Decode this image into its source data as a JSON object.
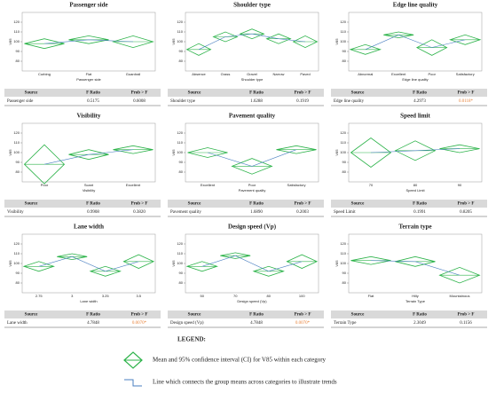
{
  "chart_data": [
    {
      "type": "means-diamond",
      "title": "Passenger side",
      "x_label": "Passenger side",
      "y_label": "V85",
      "categories": [
        "Curbing",
        "Flat",
        "Guardrail"
      ],
      "values": [
        98,
        102,
        100
      ],
      "ci": [
        5,
        4,
        6
      ],
      "ylim": [
        70,
        130
      ],
      "yticks": [
        80,
        90,
        100,
        110,
        120
      ],
      "table": {
        "columns": [
          "Source",
          "F Ratio",
          "Prob > F"
        ],
        "row": [
          "Passenger side",
          "0.5175",
          "0.6008"
        ],
        "significant": false
      }
    },
    {
      "type": "means-diamond",
      "title": "Shoulder type",
      "x_label": "Shoulder type",
      "y_label": "V85",
      "categories": [
        "Absence",
        "Grass",
        "Gravel",
        "Narrow",
        "Paved"
      ],
      "values": [
        92,
        105,
        108,
        103,
        100
      ],
      "ci": [
        6,
        5,
        5,
        5,
        6
      ],
      "ylim": [
        70,
        130
      ],
      "yticks": [
        80,
        90,
        100,
        110,
        120
      ],
      "table": {
        "columns": [
          "Source",
          "F Ratio",
          "Prob > F"
        ],
        "row": [
          "Shoulder type",
          "1.6288",
          "0.1919"
        ],
        "significant": false
      }
    },
    {
      "type": "means-diamond",
      "title": "Edge line quality",
      "x_label": "Edge line quality",
      "y_label": "V85",
      "categories": [
        "Abnormal",
        "Excellent",
        "Poor",
        "Satisfactory"
      ],
      "values": [
        92,
        107,
        94,
        102
      ],
      "ci": [
        5,
        3,
        8,
        5
      ],
      "ylim": [
        70,
        130
      ],
      "yticks": [
        80,
        90,
        100,
        110,
        120
      ],
      "table": {
        "columns": [
          "Source",
          "F Ratio",
          "Prob > F"
        ],
        "row": [
          "Edge line quality",
          "4.2973",
          "0.0118*"
        ],
        "significant": true
      }
    },
    {
      "type": "means-diamond",
      "title": "Visibility",
      "x_label": "Visibility",
      "y_label": "V85",
      "categories": [
        "Poor",
        "Scant",
        "Excellent"
      ],
      "values": [
        88,
        98,
        103
      ],
      "ci": [
        20,
        5,
        4
      ],
      "ylim": [
        70,
        130
      ],
      "yticks": [
        80,
        90,
        100,
        110,
        120
      ],
      "table": {
        "columns": [
          "Source",
          "F Ratio",
          "Prob > F"
        ],
        "row": [
          "Visibility",
          "0.9908",
          "0.3820"
        ],
        "significant": false
      }
    },
    {
      "type": "means-diamond",
      "title": "Pavement quality",
      "x_label": "Pavement quality",
      "y_label": "V85",
      "categories": [
        "Excellent",
        "Poor",
        "Satisfactory"
      ],
      "values": [
        100,
        86,
        103
      ],
      "ci": [
        5,
        8,
        4
      ],
      "ylim": [
        70,
        130
      ],
      "yticks": [
        80,
        90,
        100,
        110,
        120
      ],
      "table": {
        "columns": [
          "Source",
          "F Ratio",
          "Prob > F"
        ],
        "row": [
          "Pavement quality",
          "1.6890",
          "0.2003"
        ],
        "significant": false
      }
    },
    {
      "type": "means-diamond",
      "title": "Speed limit",
      "x_label": "Speed Limit",
      "y_label": "V85",
      "categories": [
        "70",
        "80",
        "90"
      ],
      "values": [
        100,
        102,
        104
      ],
      "ci": [
        15,
        10,
        4
      ],
      "ylim": [
        70,
        130
      ],
      "yticks": [
        80,
        90,
        100,
        110,
        120
      ],
      "table": {
        "columns": [
          "Source",
          "F Ratio",
          "Prob > F"
        ],
        "row": [
          "Speed Limit",
          "0.1991",
          "0.8205"
        ],
        "significant": false
      }
    },
    {
      "type": "means-diamond",
      "title": "Lane width",
      "x_label": "Lane width",
      "y_label": "V85",
      "categories": [
        "2.75",
        "3",
        "3.25",
        "3.5"
      ],
      "values": [
        97,
        107,
        92,
        102
      ],
      "ci": [
        5,
        3,
        5,
        7
      ],
      "ylim": [
        70,
        130
      ],
      "yticks": [
        80,
        90,
        100,
        110,
        120
      ],
      "table": {
        "columns": [
          "Source",
          "F Ratio",
          "Prob > F"
        ],
        "row": [
          "Lane width",
          "4.7848",
          "0.0070*"
        ],
        "significant": true
      }
    },
    {
      "type": "means-diamond",
      "title": "Design speed (Vp)",
      "x_label": "Design speed (Vp)",
      "y_label": "V85",
      "categories": [
        "50",
        "70",
        "80",
        "100"
      ],
      "values": [
        97,
        108,
        92,
        102
      ],
      "ci": [
        5,
        3,
        5,
        7
      ],
      "ylim": [
        70,
        130
      ],
      "yticks": [
        80,
        90,
        100,
        110,
        120
      ],
      "table": {
        "columns": [
          "Source",
          "F Ratio",
          "Prob > F"
        ],
        "row": [
          "Design speed (Vp)",
          "4.7848",
          "0.0070*"
        ],
        "significant": true
      }
    },
    {
      "type": "means-diamond",
      "title": "Terrain type",
      "x_label": "Terrain Type",
      "y_label": "V85",
      "categories": [
        "Flat",
        "Hilly",
        "Mountainous"
      ],
      "values": [
        103,
        102,
        88
      ],
      "ci": [
        4,
        5,
        8
      ],
      "ylim": [
        70,
        130
      ],
      "yticks": [
        80,
        90,
        100,
        110,
        120
      ],
      "table": {
        "columns": [
          "Source",
          "F Ratio",
          "Prob > F"
        ],
        "row": [
          "Terrain Type",
          "2.3049",
          "0.1156"
        ],
        "significant": false
      }
    }
  ],
  "legend": {
    "title": "LEGEND:",
    "items": [
      "Mean and 95% confidence interval (CI) for V85 within each category",
      "Line which connects the group means across categories to illustrate trends"
    ]
  }
}
